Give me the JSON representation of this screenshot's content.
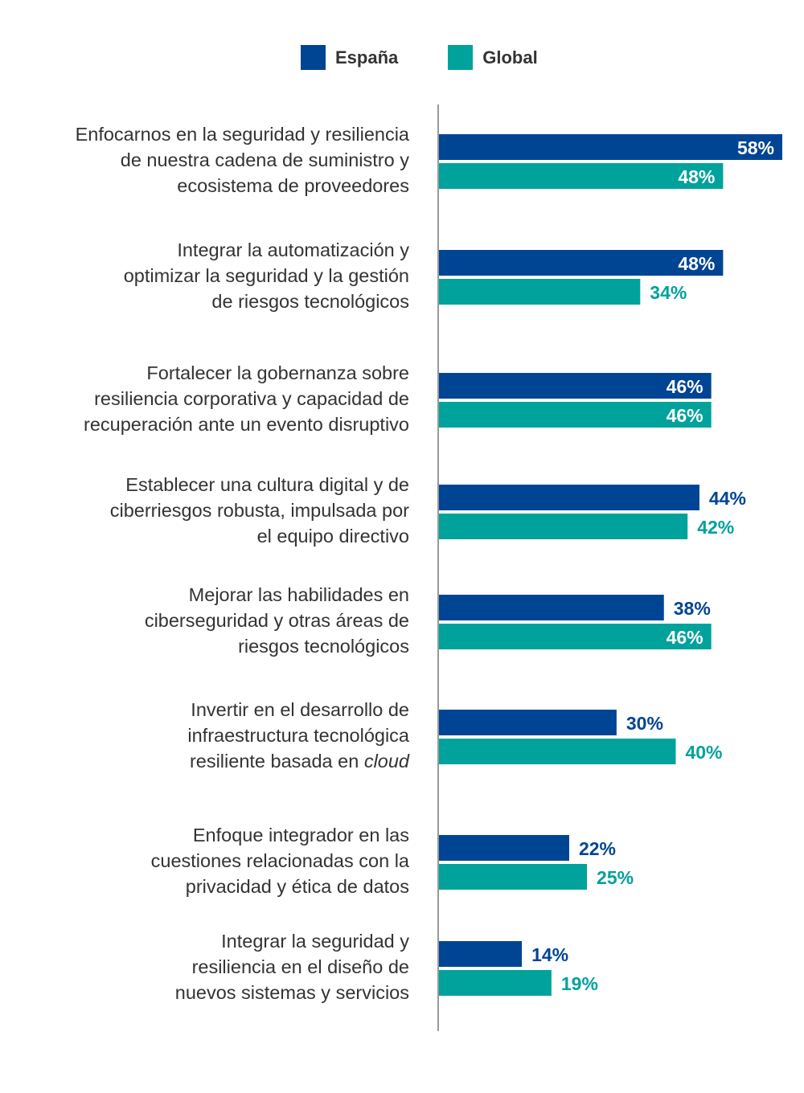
{
  "colors": {
    "espana": "#004494",
    "global": "#00A29C",
    "axis": "#999999",
    "text": "#333333",
    "inside_label": "#ffffff"
  },
  "legend": [
    {
      "name": "España",
      "color": "#004494"
    },
    {
      "name": "Global",
      "color": "#00A29C"
    }
  ],
  "chart_data": {
    "type": "bar",
    "orientation": "horizontal",
    "title": "",
    "xlabel": "",
    "ylabel": "",
    "xlim": [
      0,
      58
    ],
    "grid": false,
    "legend_position": "top",
    "value_suffix": "%",
    "categories": [
      "Enfocarnos en la seguridad y resiliencia de nuestra cadena de suministro y ecosistema de proveedores",
      "Integrar la automatización y optimizar la seguridad y la gestión de riesgos tecnológicos",
      "Fortalecer la gobernanza sobre resiliencia corporativa y capacidad de recuperación ante un evento disruptivo",
      "Establecer una cultura digital y de ciberriesgos robusta, impulsada por el equipo directivo",
      "Mejorar las habilidades en ciberseguridad y otras áreas de riesgos tecnológicos",
      "Invertir en el desarrollo de infraestructura tecnológica resiliente basada en cloud",
      "Enfoque integrador en las cuestiones relacionadas con la privacidad y ética de datos",
      "Integrar la seguridad y resiliencia en el diseño de nuevos sistemas y servicios"
    ],
    "category_lines": [
      [
        "Enfocarnos en la seguridad y resiliencia",
        "de nuestra cadena de suministro y",
        "ecosistema de proveedores"
      ],
      [
        "Integrar la automatización y",
        "optimizar la seguridad y la gestión",
        "de riesgos tecnológicos"
      ],
      [
        "Fortalecer la gobernanza sobre",
        "resiliencia corporativa y capacidad de",
        "recuperación ante un evento disruptivo"
      ],
      [
        "Establecer una cultura digital y de",
        "ciberriesgos robusta, impulsada por",
        "el equipo directivo"
      ],
      [
        "Mejorar las habilidades en",
        "ciberseguridad y otras áreas de",
        "riesgos tecnológicos"
      ],
      [
        "Invertir en el desarrollo de",
        "infraestructura tecnológica",
        "resiliente basada en |cloud"
      ],
      [
        "Enfoque integrador en las",
        "cuestiones relacionadas con la",
        "privacidad y ética de datos"
      ],
      [
        "Integrar la seguridad y",
        "resiliencia en el diseño de",
        "nuevos sistemas y servicios"
      ]
    ],
    "series": [
      {
        "name": "España",
        "color": "#004494",
        "values": [
          58,
          48,
          46,
          44,
          38,
          30,
          22,
          14
        ]
      },
      {
        "name": "Global",
        "color": "#00A29C",
        "values": [
          48,
          34,
          46,
          42,
          46,
          40,
          25,
          19
        ]
      }
    ]
  }
}
